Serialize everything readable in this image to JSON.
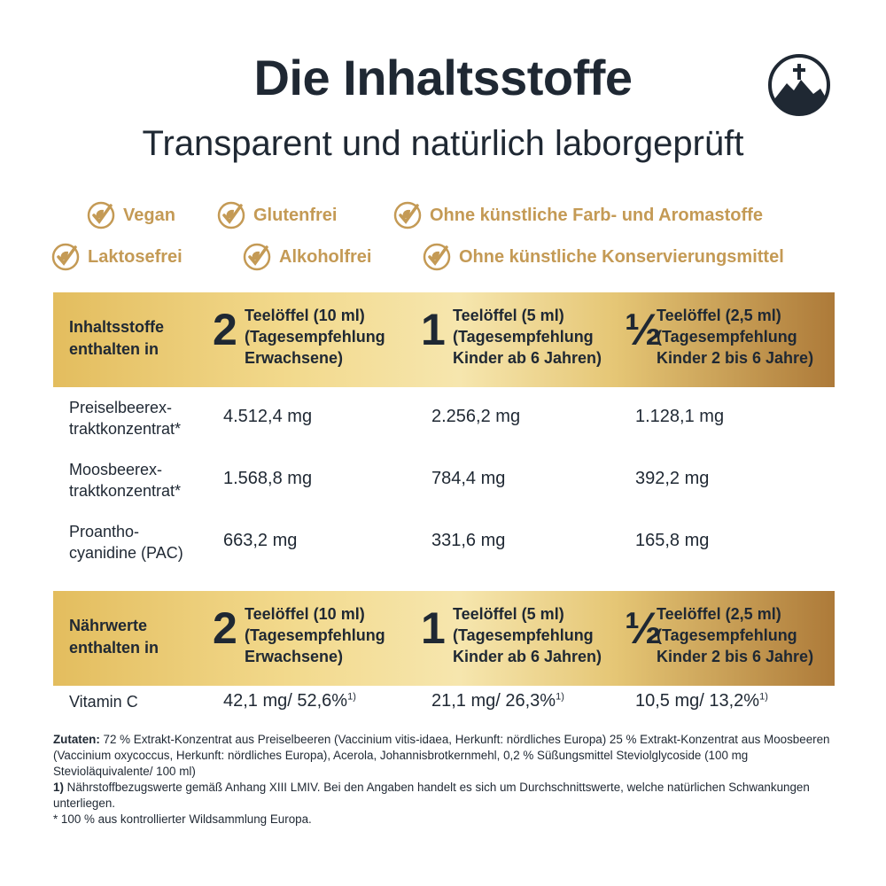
{
  "header": {
    "title": "Die Inhaltsstoffe",
    "subtitle": "Transparent und natürlich laborgeprüft"
  },
  "badges": [
    "Vegan",
    "Glutenfrei",
    "Ohne künstliche Farb- und Aromastoffe",
    "Laktosefrei",
    "Alkoholfrei",
    "Ohne künstliche Konservierungsmittel"
  ],
  "tables": [
    {
      "label": [
        "Inhaltsstoffe",
        "enthalten in"
      ],
      "columns": [
        {
          "amount": "2",
          "lines": [
            "Teelöffel (10 ml)",
            "(Tagesempfehlung",
            "Erwachsene)"
          ]
        },
        {
          "amount": "1",
          "lines": [
            "Teelöffel (5 ml)",
            "(Tagesempfehlung",
            "Kinder ab 6 Jahren)"
          ]
        },
        {
          "amount": "½",
          "lines": [
            "Teelöffel (2,5 ml)",
            "(Tagesempfehlung",
            "Kinder 2 bis 6 Jahre)"
          ]
        }
      ],
      "rows": [
        {
          "name": [
            "Preiselbeerex-",
            "traktkonzentrat*"
          ],
          "values": [
            "4.512,4 mg",
            "2.256,2 mg",
            "1.128,1 mg"
          ]
        },
        {
          "name": [
            "Moosbeerex-",
            "traktkonzentrat*"
          ],
          "values": [
            "1.568,8 mg",
            "784,4 mg",
            "392,2 mg"
          ]
        },
        {
          "name": [
            "Proantho-",
            "cyanidine (PAC)"
          ],
          "values": [
            "663,2 mg",
            "331,6 mg",
            "165,8 mg"
          ]
        }
      ]
    },
    {
      "label": [
        "Nährwerte",
        "enthalten in"
      ],
      "columns": [
        {
          "amount": "2",
          "lines": [
            "Teelöffel (10 ml)",
            "(Tagesempfehlung",
            "Erwachsene)"
          ]
        },
        {
          "amount": "1",
          "lines": [
            "Teelöffel (5 ml)",
            "(Tagesempfehlung",
            "Kinder ab 6 Jahren)"
          ]
        },
        {
          "amount": "½",
          "lines": [
            "Teelöffel (2,5 ml)",
            "(Tagesempfehlung",
            "Kinder 2 bis 6 Jahre)"
          ]
        }
      ],
      "rows": [
        {
          "name": [
            "Vitamin C"
          ],
          "values": [
            "42,1 mg/ 52,6%",
            "21,1 mg/ 26,3%",
            "10,5 mg/ 13,2%"
          ],
          "notes": [
            "1)",
            "1)",
            "1)"
          ]
        }
      ]
    }
  ],
  "footnotes": {
    "ingredients": {
      "label": "Zutaten:",
      "text": "72 % Extrakt-Konzentrat aus Preiselbeeren (Vaccinium vitis-idaea, Herkunft: nördliches Europa) 25 % Extrakt-Konzentrat aus Moosbeeren (Vaccinium oxycoccus, Herkunft: nördliches Europa), Acerola, Johannisbrotkernmehl, 0,2 % Süßungsmittel Steviolglycoside (100 mg Stevioläquivalente/ 100 ml)"
    },
    "reference": {
      "label": "1)",
      "text": "Nährstoffbezugswerte gemäß Anhang XIII LMIV. Bei den Angaben handelt es sich um Durchschnittswerte, welche natürlichen Schwankungen unterliegen."
    },
    "origin": "* 100 % aus kontrollierter Wildsammlung Europa."
  }
}
